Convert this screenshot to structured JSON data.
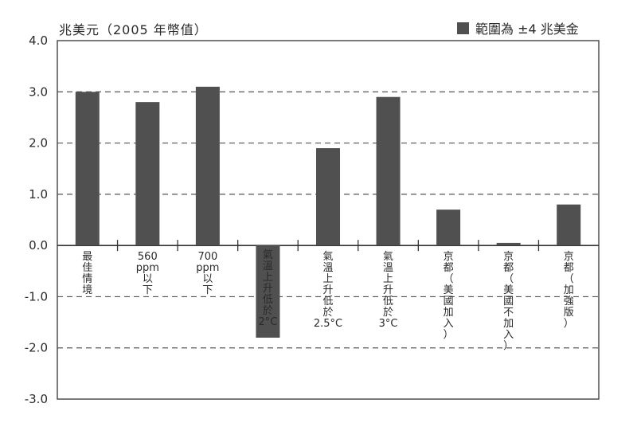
{
  "chart_data": {
    "type": "bar",
    "ylabel": "兆美元（2005 年幣值）",
    "legend": "範圍為 ±4 兆美金",
    "yticks": [
      "4.0",
      "3.0",
      "2.0",
      "1.0",
      "0.0",
      "-1.0",
      "-2.0",
      "-3.0"
    ],
    "ylim": [
      -3,
      4
    ],
    "grid": true,
    "bar_color": "#505050",
    "categories": [
      "最佳情境",
      "560 ppm 以下",
      "700 ppm 以下",
      "氣溫上升低於 2°C",
      "氣溫上升低於 2.5°C",
      "氣溫上升低於 3°C",
      "京都（美國加入）",
      "京都（美國不加入）",
      "京都（加強版）"
    ],
    "values": [
      3.0,
      2.8,
      3.1,
      -1.8,
      1.9,
      2.9,
      0.7,
      0.05,
      0.8
    ]
  }
}
